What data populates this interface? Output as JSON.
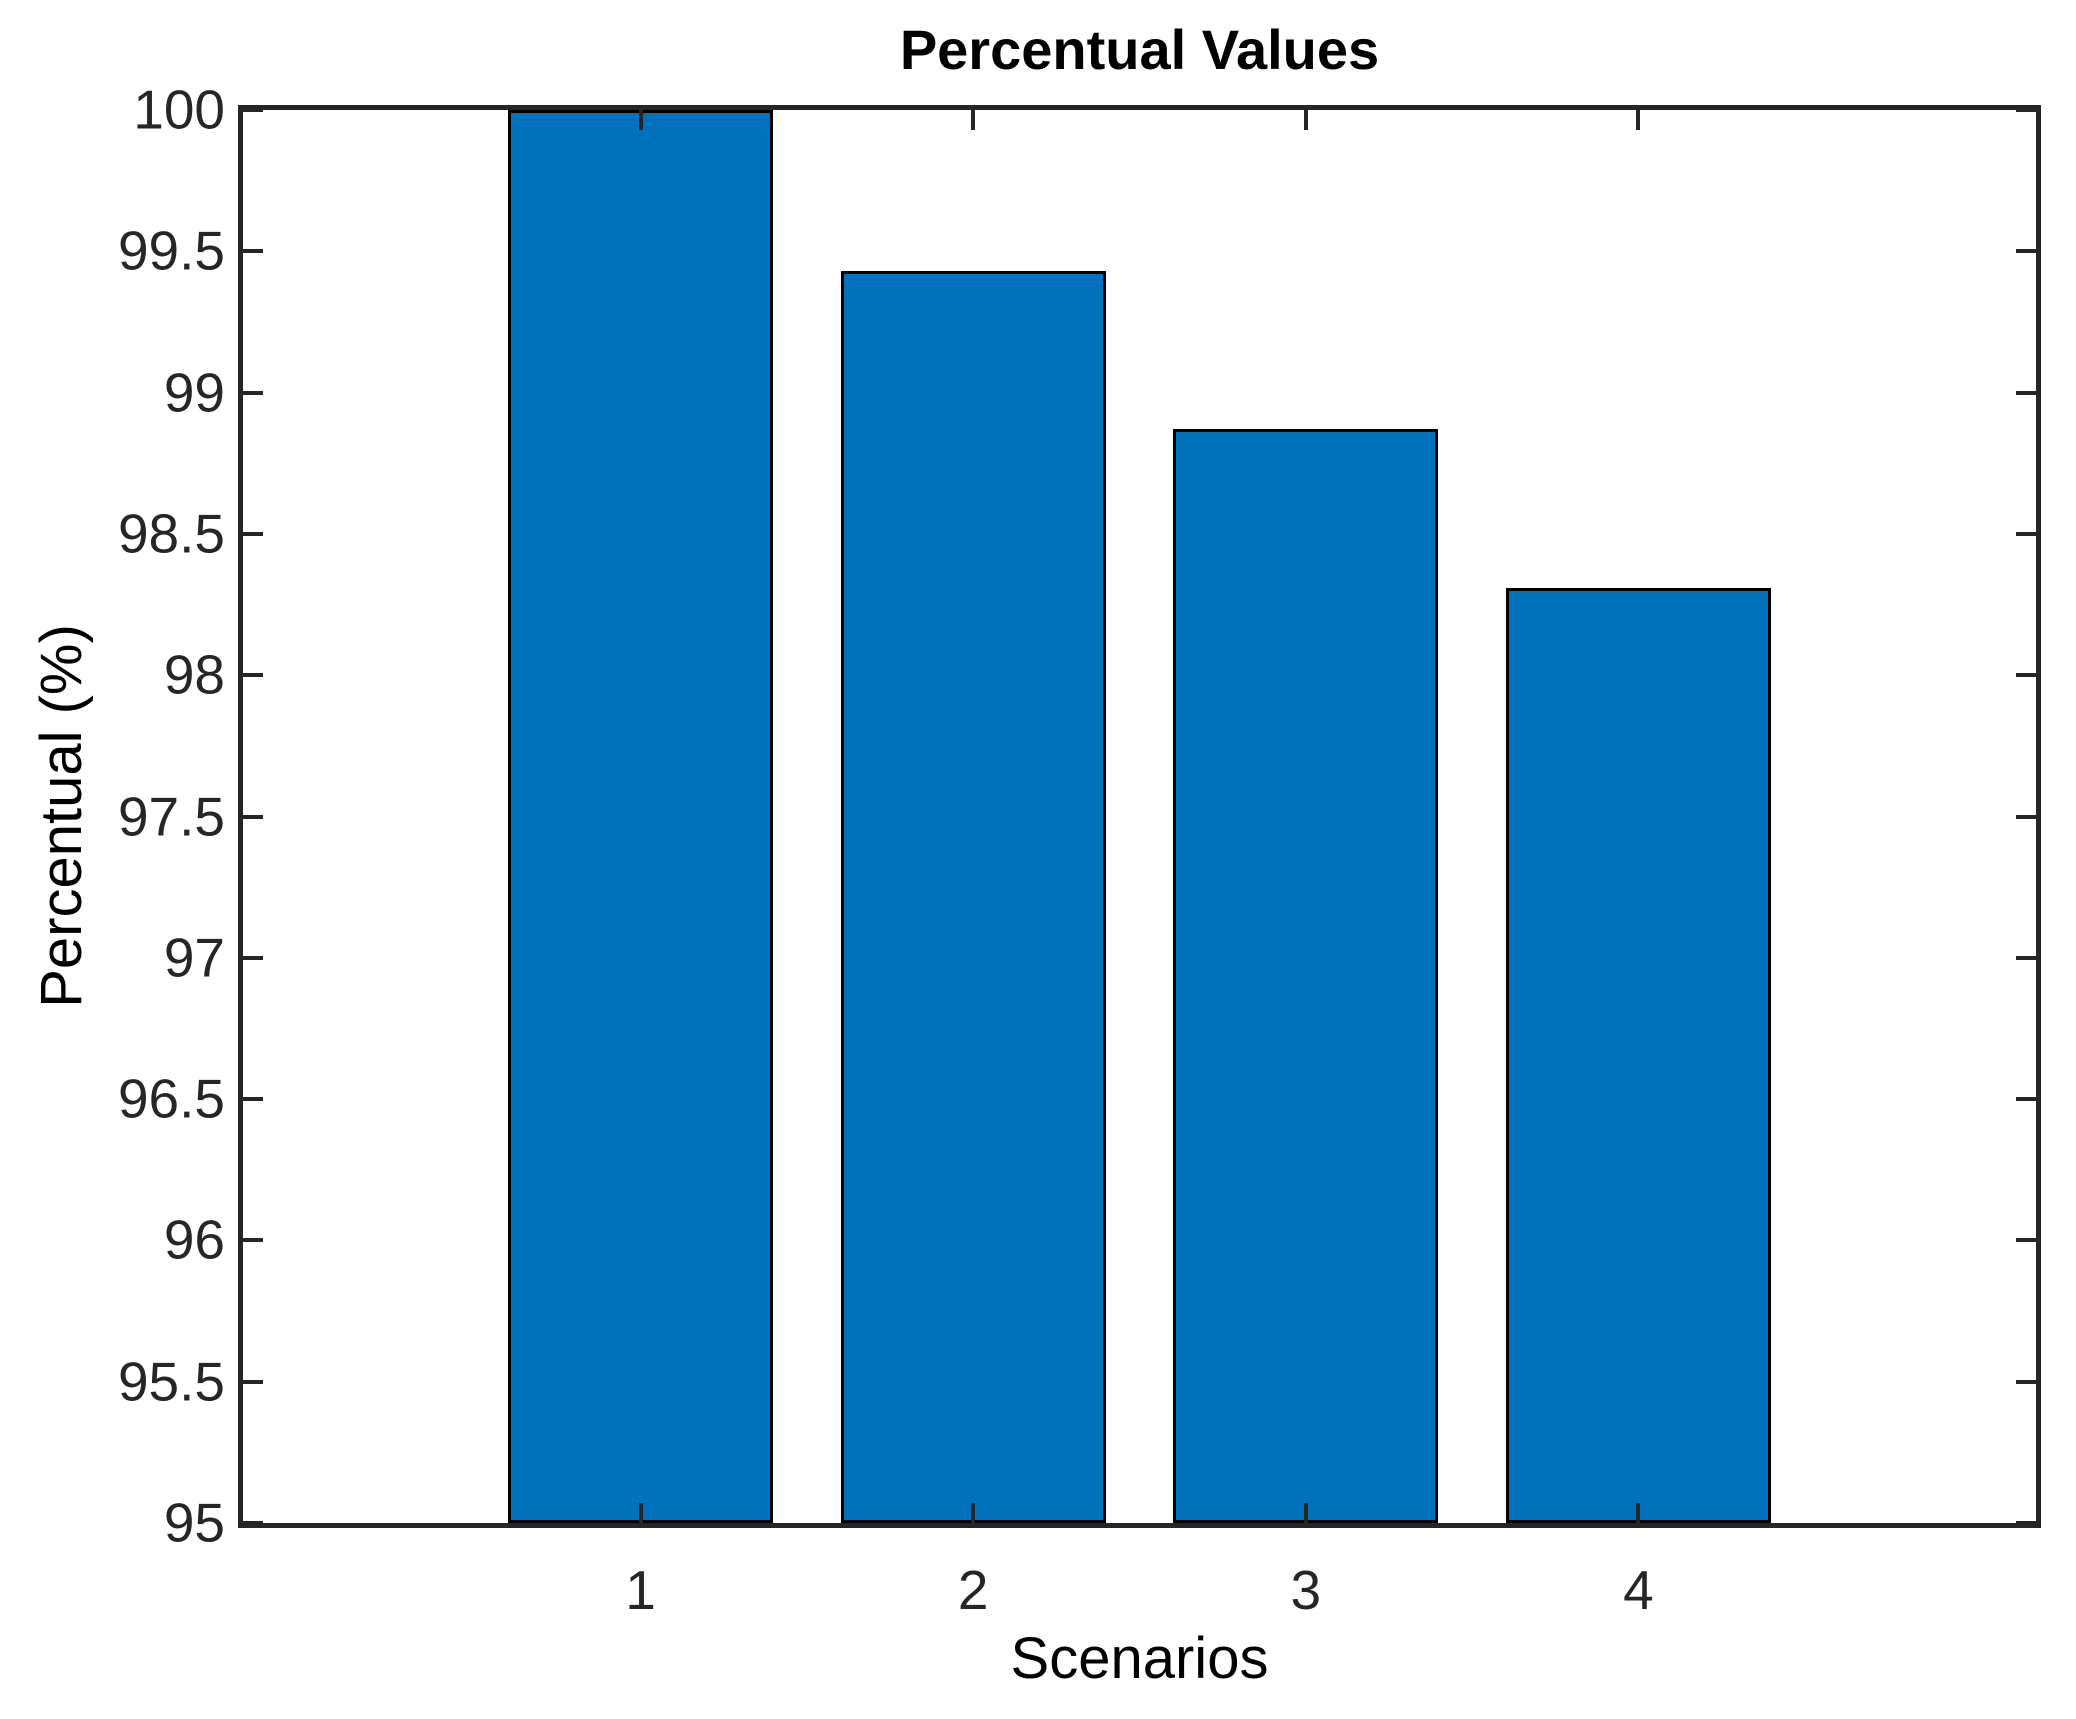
{
  "chart_data": {
    "type": "bar",
    "title": "Percentual Values",
    "xlabel": "Scenarios",
    "ylabel": "Percentual (%)",
    "categories": [
      "1",
      "2",
      "3",
      "4"
    ],
    "values": [
      100,
      99.43,
      98.87,
      98.31
    ],
    "ylim": [
      95,
      100
    ],
    "yticks": [
      95,
      95.5,
      96,
      96.5,
      97,
      97.5,
      98,
      98.5,
      99,
      99.5,
      100
    ],
    "grid": false,
    "legend_position": "none",
    "bar_color": "#0072BD",
    "bar_edge_color": "#000000",
    "axis_color": "#262626",
    "background_color": "#ffffff"
  }
}
